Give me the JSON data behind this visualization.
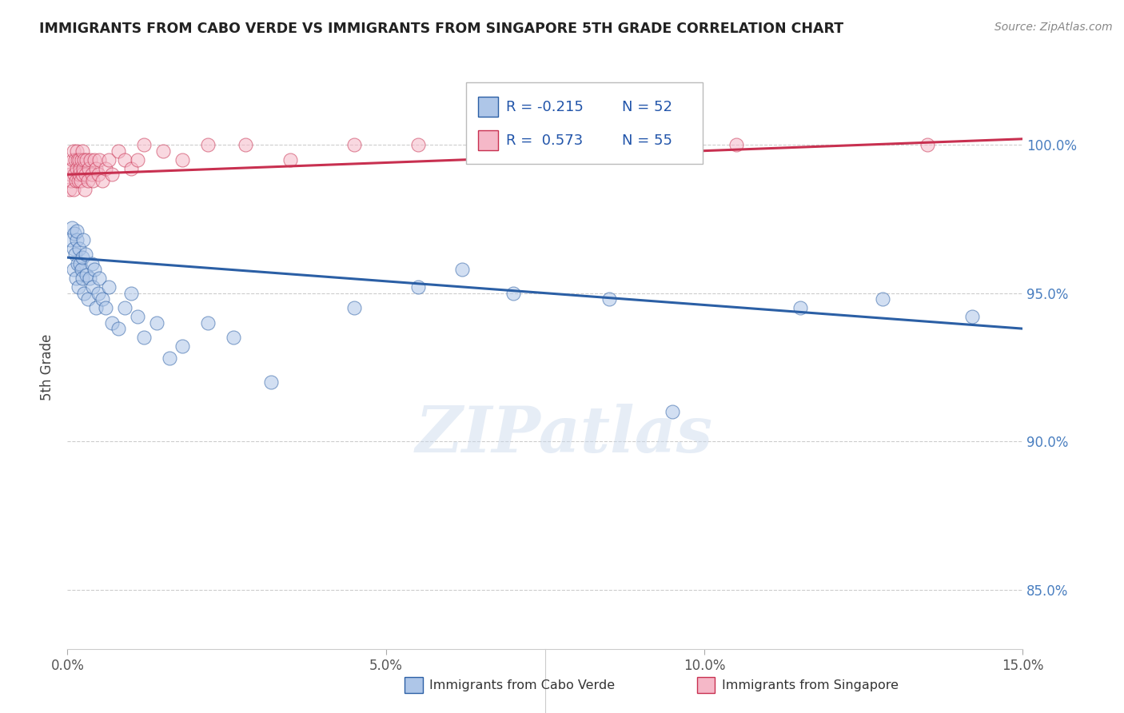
{
  "title": "IMMIGRANTS FROM CABO VERDE VS IMMIGRANTS FROM SINGAPORE 5TH GRADE CORRELATION CHART",
  "source": "Source: ZipAtlas.com",
  "legend1": "Immigrants from Cabo Verde",
  "legend2": "Immigrants from Singapore",
  "ylabel": "5th Grade",
  "r1": -0.215,
  "n1": 52,
  "r2": 0.573,
  "n2": 55,
  "color1": "#aec6e8",
  "color2": "#f5b8c8",
  "line_color1": "#2b5fa5",
  "line_color2": "#c83050",
  "xlim": [
    0.0,
    15.0
  ],
  "ylim": [
    83.0,
    102.0
  ],
  "yticks": [
    85.0,
    90.0,
    95.0,
    100.0
  ],
  "xticks": [
    0.0,
    5.0,
    10.0,
    15.0
  ],
  "watermark": "ZIPatlas",
  "cabo_verde_x": [
    0.05,
    0.07,
    0.09,
    0.1,
    0.11,
    0.12,
    0.13,
    0.14,
    0.15,
    0.16,
    0.17,
    0.18,
    0.2,
    0.22,
    0.23,
    0.24,
    0.25,
    0.26,
    0.28,
    0.3,
    0.32,
    0.35,
    0.38,
    0.4,
    0.42,
    0.45,
    0.48,
    0.5,
    0.55,
    0.6,
    0.65,
    0.7,
    0.8,
    0.9,
    1.0,
    1.1,
    1.2,
    1.4,
    1.6,
    1.8,
    2.2,
    2.6,
    3.2,
    4.5,
    5.5,
    6.2,
    7.0,
    8.5,
    9.5,
    11.5,
    12.8,
    14.2
  ],
  "cabo_verde_y": [
    96.8,
    97.2,
    96.5,
    95.8,
    97.0,
    96.3,
    95.5,
    96.8,
    97.1,
    96.0,
    95.2,
    96.5,
    96.0,
    95.8,
    96.2,
    95.5,
    96.8,
    95.0,
    96.3,
    95.6,
    94.8,
    95.5,
    96.0,
    95.2,
    95.8,
    94.5,
    95.0,
    95.5,
    94.8,
    94.5,
    95.2,
    94.0,
    93.8,
    94.5,
    95.0,
    94.2,
    93.5,
    94.0,
    92.8,
    93.2,
    94.0,
    93.5,
    92.0,
    94.5,
    95.2,
    95.8,
    95.0,
    94.8,
    91.0,
    94.5,
    94.8,
    94.2
  ],
  "singapore_x": [
    0.03,
    0.05,
    0.06,
    0.07,
    0.08,
    0.09,
    0.1,
    0.11,
    0.12,
    0.13,
    0.14,
    0.15,
    0.16,
    0.17,
    0.18,
    0.19,
    0.2,
    0.21,
    0.22,
    0.23,
    0.24,
    0.25,
    0.26,
    0.27,
    0.28,
    0.3,
    0.32,
    0.34,
    0.36,
    0.38,
    0.4,
    0.42,
    0.45,
    0.48,
    0.5,
    0.55,
    0.6,
    0.65,
    0.7,
    0.8,
    0.9,
    1.0,
    1.1,
    1.2,
    1.5,
    1.8,
    2.2,
    2.8,
    3.5,
    4.5,
    5.5,
    6.5,
    8.0,
    10.5,
    13.5
  ],
  "singapore_y": [
    98.5,
    99.0,
    98.8,
    99.2,
    99.5,
    98.5,
    99.8,
    99.0,
    99.5,
    98.8,
    99.2,
    99.8,
    99.5,
    98.8,
    99.0,
    99.5,
    99.2,
    98.8,
    99.5,
    99.0,
    99.8,
    99.2,
    99.5,
    98.5,
    99.0,
    99.5,
    98.8,
    99.2,
    99.5,
    99.0,
    98.8,
    99.5,
    99.2,
    99.0,
    99.5,
    98.8,
    99.2,
    99.5,
    99.0,
    99.8,
    99.5,
    99.2,
    99.5,
    100.0,
    99.8,
    99.5,
    100.0,
    100.0,
    99.5,
    100.0,
    100.0,
    99.8,
    100.0,
    100.0,
    100.0
  ],
  "cv_line_x": [
    0.0,
    15.0
  ],
  "cv_line_y": [
    96.2,
    93.8
  ],
  "sg_line_x": [
    0.0,
    15.0
  ],
  "sg_line_y": [
    99.0,
    100.2
  ]
}
